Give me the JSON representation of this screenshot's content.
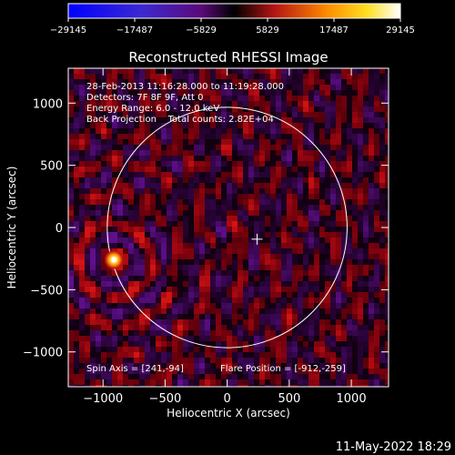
{
  "chart_data": {
    "type": "heatmap",
    "title": "Reconstructed RHESSI Image",
    "xlabel": "Heliocentric X (arcsec)",
    "ylabel": "Heliocentric Y (arcsec)",
    "xlim": [
      -1280,
      1300
    ],
    "ylim": [
      -1280,
      1280
    ],
    "x_ticks": [
      -1000,
      -500,
      0,
      500,
      1000
    ],
    "x_tick_labels": [
      "−1000",
      "−500",
      "0",
      "500",
      "1000"
    ],
    "y_ticks": [
      1000,
      500,
      0,
      -500,
      -1000
    ],
    "y_tick_labels": [
      "1000",
      "500",
      "0",
      "−500",
      "−1000"
    ],
    "colorbar": {
      "min": -29145,
      "max": 29145,
      "tick_values": [
        -29145,
        -17487,
        -5829,
        5829,
        17487,
        29145
      ],
      "tick_labels": [
        "−29145",
        "−17487",
        "−5829",
        "5829",
        "17487",
        "29145"
      ],
      "colormap_stops": [
        "#0000ff",
        "#3c28d2",
        "#5a0a7a",
        "#000000",
        "#b41414",
        "#ff8c00",
        "#ffe020",
        "#ffffff"
      ]
    },
    "annotations": [
      "28-Feb-2013 11:16:28.000 to 11:19:28.000",
      "Detectors: 7F 8F 9F, Att 0",
      "Energy Range: 6.0 - 12.0 keV",
      "Back Projection    Total counts: 2.82E+04"
    ],
    "spin_axis_label": "Spin Axis = [241,-94]",
    "flare_position_label": "Flare Position = [-912,-259]",
    "spin_axis": [
      241,
      -94
    ],
    "flare_position": [
      -912,
      -259
    ],
    "solar_limb_radius": 966,
    "solar_limb_center": [
      0,
      0
    ],
    "timestamp": "11-May-2022 18:29"
  }
}
